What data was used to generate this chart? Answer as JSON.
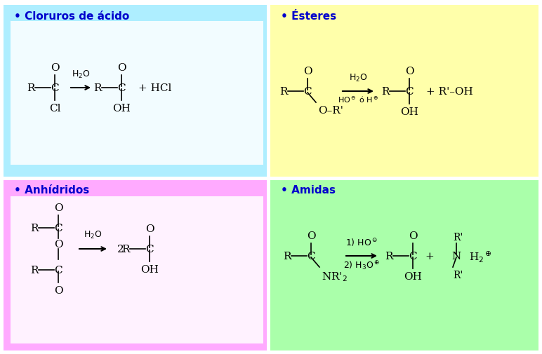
{
  "bg_color": "#ffffff",
  "quad_colors": {
    "top_left": "#aeeeff",
    "top_right": "#ffffaa",
    "bottom_left": "#ffaaff",
    "bottom_right": "#aaffaa"
  },
  "titles": {
    "top_left": "• Cloruros de ácido",
    "top_right": "• Ésteres",
    "bottom_left": "• Anhídridos",
    "bottom_right": "• Amidas"
  },
  "title_color": "#0000cc",
  "title_fontsize": 11,
  "formula_fontsize": 11,
  "small_fontsize": 9
}
